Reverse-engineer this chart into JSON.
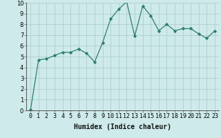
{
  "x": [
    0,
    1,
    2,
    3,
    4,
    5,
    6,
    7,
    8,
    9,
    10,
    11,
    12,
    13,
    14,
    15,
    16,
    17,
    18,
    19,
    20,
    21,
    22,
    23
  ],
  "y": [
    0.05,
    4.7,
    4.8,
    5.1,
    5.4,
    5.4,
    5.7,
    5.3,
    4.5,
    6.3,
    8.5,
    9.4,
    10.1,
    6.9,
    9.7,
    8.8,
    7.4,
    8.0,
    7.4,
    7.6,
    7.6,
    7.1,
    6.7,
    7.4
  ],
  "xlabel": "Humidex (Indice chaleur)",
  "ylim": [
    0,
    10
  ],
  "xlim": [
    -0.5,
    23.5
  ],
  "line_color": "#2d7d6e",
  "bg_color": "#ceeaea",
  "grid_color": "#b0cfcf",
  "xlabel_fontsize": 7,
  "tick_fontsize": 6,
  "marker": "D",
  "marker_size": 1.8,
  "linewidth": 0.9
}
